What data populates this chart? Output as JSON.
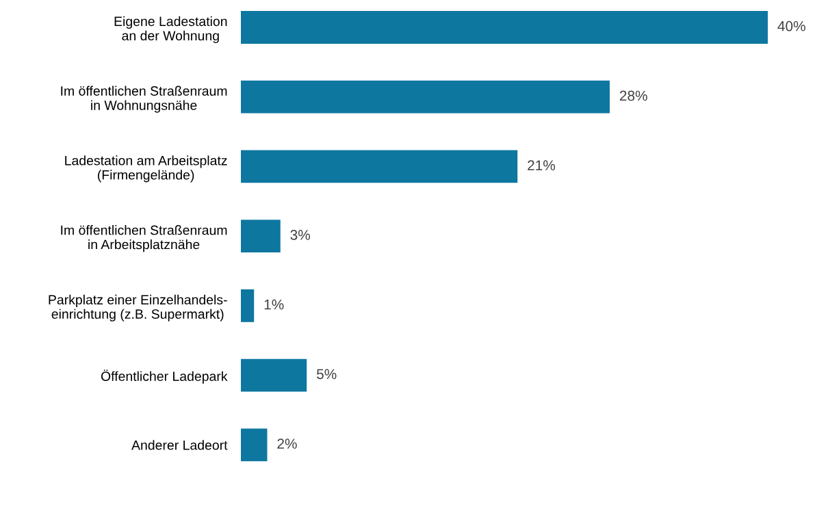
{
  "chart_data": {
    "type": "bar",
    "orientation": "horizontal",
    "categories": [
      "Eigene Ladestation\nan der Wohnung",
      "Im öffentlichen Straßenraum\nin Wohnungsnähe",
      "Ladestation am Arbeitsplatz\n(Firmengelände)",
      "Im öffentlichen Straßenraum\nin Arbeitsplatznähe",
      "Parkplatz einer Einzelhandels-\neinrichtung (z.B. Supermarkt)",
      "Öffentlicher Ladepark",
      "Anderer Ladeort"
    ],
    "values": [
      40,
      28,
      21,
      3,
      1,
      5,
      2
    ],
    "value_labels": [
      "40%",
      "28%",
      "21%",
      "3%",
      "1%",
      "5%",
      "2%"
    ],
    "color": "#0e77a0",
    "xlim": [
      0,
      40
    ],
    "tick_labels": "y",
    "grid": false,
    "legend": false
  }
}
